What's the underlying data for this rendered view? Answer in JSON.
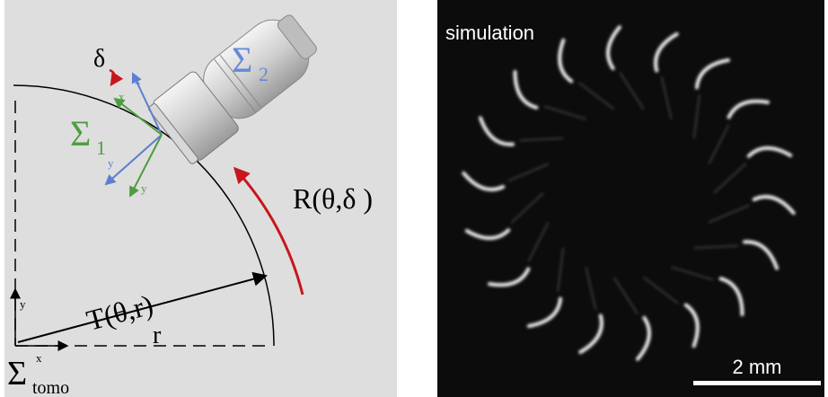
{
  "left_panel": {
    "probe_frame": {
      "sigma": "Σ",
      "sub": "2"
    },
    "sensor_frame": {
      "sigma": "Σ",
      "sub": "1"
    },
    "rotation_angle": "δ",
    "blue_axes": {
      "x": "x",
      "y": "y"
    },
    "green_axes": {
      "x": "x",
      "y": "y"
    },
    "rotation": "R(θ,δ )",
    "translation": "T(θ,r)",
    "radius": "r",
    "tomo_frame": {
      "y": "y",
      "x": "x",
      "sigma": "Σ",
      "sub": "tomo"
    }
  },
  "right_panel": {
    "label": "simulation",
    "scale_bar": "2 mm"
  }
}
